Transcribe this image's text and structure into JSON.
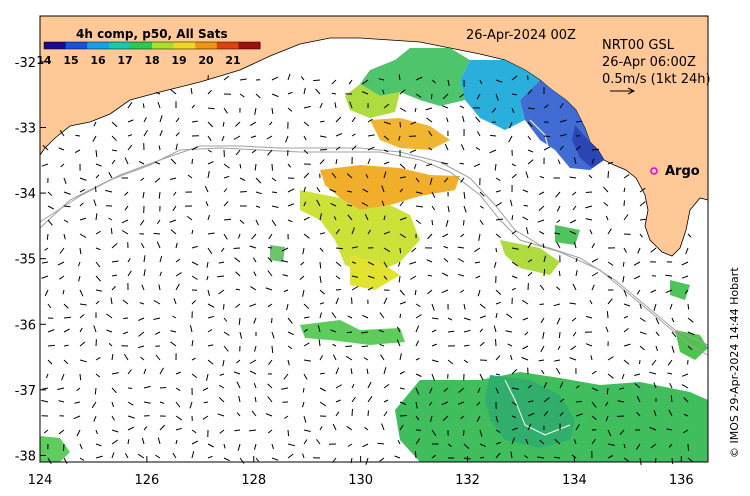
{
  "map": {
    "date_label": "26-Apr-2024 00Z",
    "info": {
      "line1": "NRT00 GSL",
      "line2": "26-Apr 06:00Z",
      "line3": "0.5m/s (1kt 24h)"
    },
    "colorbar": {
      "title": "4h comp, p50, All Sats",
      "ticks": [
        "14",
        "15",
        "16",
        "17",
        "18",
        "19",
        "20",
        "21"
      ],
      "range": [
        14,
        22
      ],
      "colors": [
        "#1a0a8c",
        "#1e4fd8",
        "#1aa0e0",
        "#18c8b0",
        "#30c850",
        "#a8e028",
        "#f0d820",
        "#f09810",
        "#e04010",
        "#a01010"
      ]
    },
    "argo_label": "Argo",
    "credit": "© IMOS 29-Apr-2024 14:44 Hobart",
    "x_ticks": [
      "124",
      "126",
      "128",
      "130",
      "132",
      "134",
      "136"
    ],
    "y_ticks": [
      "-32",
      "-33",
      "-34",
      "-35",
      "-36",
      "-37",
      "-38"
    ],
    "lon_range": [
      124,
      136.5
    ],
    "lat_range": [
      -38.1,
      -31.3
    ],
    "land_color": "#ffc896"
  }
}
